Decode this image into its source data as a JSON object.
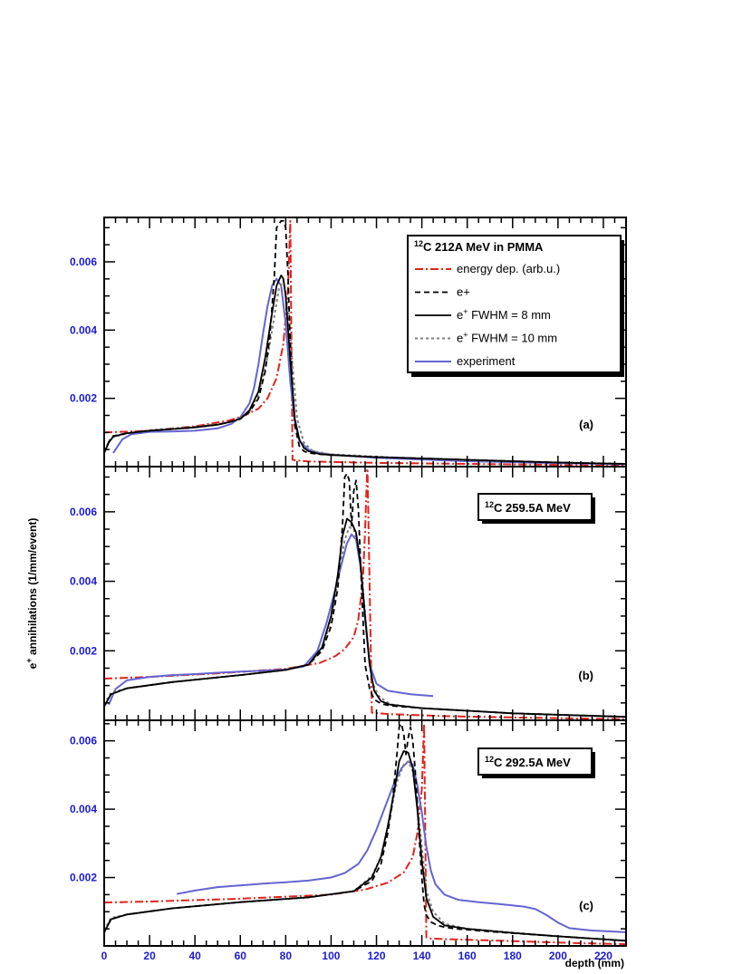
{
  "figure": {
    "ylabel_prefix": "e",
    "ylabel_sup": "+",
    "ylabel_rest": " annihilations (1/mm/event)",
    "xlabel": "depth (mm)",
    "colors": {
      "tick_y": "#1a1ad6",
      "tick_x": "#1a1ad6",
      "energy": "#e3231c",
      "eplus": "#000000",
      "fwhm8": "#000000",
      "fwhm10": "#7f7f7f",
      "experiment": "#6464d2"
    }
  },
  "legend": {
    "title_sup": "12",
    "title": "C 212A MeV in PMMA",
    "entries": [
      {
        "key": "energy",
        "label": "energy dep. (arb.u.)"
      },
      {
        "key": "eplus",
        "label": "e+"
      },
      {
        "key": "fwhm8",
        "label_prefix": "e",
        "label_sup": "+",
        "label_rest": " FWHM = 8 mm"
      },
      {
        "key": "fwhm10",
        "label_prefix": "e",
        "label_sup": "+",
        "label_rest": " FWHM = 10 mm"
      },
      {
        "key": "experiment",
        "label": "experiment"
      }
    ]
  },
  "chart_data": [
    {
      "type": "line",
      "panel_label": "(a)",
      "title": "",
      "xlim": [
        0,
        230
      ],
      "ylim": [
        0,
        0.0073
      ],
      "yticks": [
        "0.002",
        "0.004",
        "0.006"
      ],
      "xticks": [],
      "series": [
        {
          "key": "energy",
          "x": [
            0,
            20,
            40,
            55,
            62,
            68,
            72,
            76,
            79,
            81,
            82,
            83,
            85,
            90,
            120,
            160,
            200,
            230
          ],
          "y": [
            0.001,
            0.00105,
            0.00118,
            0.00135,
            0.0015,
            0.0017,
            0.002,
            0.0026,
            0.0036,
            0.0052,
            0.0072,
            0.0002,
            0.00018,
            0.00015,
            0.00011,
            8e-05,
            5e-05,
            3e-05
          ]
        },
        {
          "key": "eplus",
          "x": [
            0,
            2,
            4,
            10,
            20,
            30,
            40,
            50,
            55,
            60,
            64,
            68,
            71,
            73,
            75,
            76,
            78,
            79,
            80,
            81,
            82,
            84,
            86,
            88,
            90,
            95,
            100,
            120,
            150,
            200,
            230
          ],
          "y": [
            0.0004,
            0.00072,
            0.0009,
            0.00098,
            0.00105,
            0.0011,
            0.00115,
            0.00123,
            0.0013,
            0.0014,
            0.0016,
            0.002,
            0.0028,
            0.0038,
            0.0056,
            0.007,
            0.0072,
            0.0072,
            0.007,
            0.0056,
            0.0035,
            0.0012,
            0.0006,
            0.00045,
            0.0004,
            0.00036,
            0.00034,
            0.00028,
            0.00022,
            0.00012,
            8e-05
          ]
        },
        {
          "key": "fwhm8",
          "x": [
            0,
            2,
            4,
            10,
            20,
            30,
            40,
            50,
            55,
            60,
            64,
            68,
            71,
            74,
            76,
            78,
            79,
            80,
            82,
            84,
            86,
            88,
            90,
            95,
            100,
            120,
            150,
            200,
            230
          ],
          "y": [
            0.0004,
            0.0007,
            0.00088,
            0.00098,
            0.00105,
            0.0011,
            0.00115,
            0.00123,
            0.0013,
            0.0014,
            0.00165,
            0.0022,
            0.0032,
            0.0045,
            0.0053,
            0.0056,
            0.0055,
            0.005,
            0.0031,
            0.0014,
            0.0008,
            0.00055,
            0.00045,
            0.00037,
            0.00034,
            0.00028,
            0.00022,
            0.00012,
            8e-05
          ]
        },
        {
          "key": "fwhm10",
          "x": [
            0,
            3,
            10,
            20,
            30,
            40,
            50,
            58,
            64,
            68,
            72,
            75,
            77,
            79,
            81,
            83,
            85,
            88,
            92,
            100,
            130,
            170,
            230
          ],
          "y": [
            0.00045,
            0.00085,
            0.00097,
            0.00107,
            0.00112,
            0.00117,
            0.00124,
            0.00135,
            0.0016,
            0.0021,
            0.0032,
            0.0044,
            0.0052,
            0.00545,
            0.0047,
            0.003,
            0.0014,
            0.0007,
            0.00045,
            0.00036,
            0.00026,
            0.00017,
            8e-05
          ]
        },
        {
          "key": "experiment",
          "x": [
            4,
            8,
            12,
            20,
            30,
            40,
            50,
            56,
            60,
            64,
            66,
            68,
            70,
            72,
            74,
            76,
            78,
            80,
            82,
            84,
            86,
            90,
            95,
            100,
            120,
            160,
            200,
            230
          ],
          "y": [
            0.0004,
            0.0008,
            0.00095,
            0.00102,
            0.00103,
            0.00105,
            0.00112,
            0.00125,
            0.00145,
            0.00185,
            0.0023,
            0.003,
            0.0039,
            0.0047,
            0.0053,
            0.0055,
            0.0053,
            0.0042,
            0.0025,
            0.0013,
            0.00075,
            0.0005,
            0.0004,
            0.00035,
            0.00026,
            0.00016,
            0.0001,
            7e-05
          ]
        }
      ]
    },
    {
      "type": "line",
      "panel_label": "(b)",
      "title_sup": "12",
      "title": "C 259.5A MeV",
      "xlim": [
        0,
        230
      ],
      "ylim": [
        0,
        0.0073
      ],
      "yticks": [
        "0.002",
        "0.004",
        "0.006"
      ],
      "xticks": [],
      "series": [
        {
          "key": "energy",
          "x": [
            0,
            20,
            50,
            80,
            95,
            102,
            106,
            110,
            112,
            114,
            115,
            116,
            118,
            125,
            150,
            190,
            230
          ],
          "y": [
            0.0012,
            0.00125,
            0.00135,
            0.00148,
            0.00165,
            0.00185,
            0.00205,
            0.0024,
            0.0029,
            0.004,
            0.0055,
            0.0074,
            0.00022,
            0.00018,
            0.00012,
            7e-05,
            3e-05
          ]
        },
        {
          "key": "eplus",
          "x": [
            0,
            3,
            10,
            30,
            60,
            80,
            90,
            96,
            100,
            103,
            105,
            106,
            107,
            108,
            109,
            110,
            111,
            112,
            113,
            114,
            115,
            117,
            119,
            122,
            126,
            140,
            180,
            230
          ],
          "y": [
            0.0004,
            0.00075,
            0.00092,
            0.0011,
            0.0013,
            0.00145,
            0.0016,
            0.002,
            0.0027,
            0.0038,
            0.0056,
            0.007,
            0.0071,
            0.0069,
            0.0056,
            0.0066,
            0.0069,
            0.0061,
            0.0045,
            0.003,
            0.0016,
            0.0009,
            0.0006,
            0.00048,
            0.00042,
            0.00035,
            0.0002,
            0.0001
          ]
        },
        {
          "key": "fwhm8",
          "x": [
            0,
            3,
            10,
            30,
            60,
            80,
            90,
            96,
            100,
            103,
            105,
            107,
            109,
            111,
            113,
            115,
            117,
            119,
            122,
            126,
            140,
            180,
            230
          ],
          "y": [
            0.0004,
            0.00075,
            0.00092,
            0.0011,
            0.0013,
            0.00145,
            0.0016,
            0.0021,
            0.003,
            0.0042,
            0.0053,
            0.0058,
            0.0057,
            0.0054,
            0.0045,
            0.003,
            0.0016,
            0.00085,
            0.00055,
            0.00045,
            0.00035,
            0.0002,
            0.0001
          ]
        },
        {
          "key": "fwhm10",
          "x": [
            0,
            3,
            10,
            30,
            60,
            80,
            90,
            96,
            100,
            103,
            106,
            108,
            110,
            112,
            114,
            116,
            118,
            121,
            126,
            140,
            180,
            230
          ],
          "y": [
            0.00045,
            0.0008,
            0.00092,
            0.0011,
            0.0013,
            0.00145,
            0.0016,
            0.00205,
            0.0029,
            0.004,
            0.0052,
            0.00555,
            0.0055,
            0.005,
            0.0038,
            0.0023,
            0.0011,
            0.0007,
            0.00046,
            0.00035,
            0.0002,
            0.0001
          ]
        },
        {
          "key": "experiment",
          "x": [
            2,
            5,
            10,
            20,
            30,
            40,
            50,
            60,
            70,
            80,
            88,
            94,
            98,
            102,
            105,
            107,
            109,
            111,
            113,
            115,
            117,
            120,
            125,
            135,
            145
          ],
          "y": [
            0.00045,
            0.0009,
            0.00115,
            0.00125,
            0.0013,
            0.00133,
            0.00137,
            0.0014,
            0.00143,
            0.00146,
            0.00155,
            0.002,
            0.0028,
            0.0038,
            0.0046,
            0.0051,
            0.00535,
            0.0052,
            0.0044,
            0.0029,
            0.0016,
            0.00105,
            0.00085,
            0.00075,
            0.0007
          ]
        }
      ]
    },
    {
      "type": "line",
      "panel_label": "(c)",
      "title_sup": "12",
      "title": "C 292.5A MeV",
      "xlim": [
        0,
        230
      ],
      "ylim": [
        0,
        0.0066
      ],
      "yticks": [
        "0.002",
        "0.004",
        "0.006"
      ],
      "xticks": [
        "0",
        "20",
        "40",
        "60",
        "80",
        "100",
        "120",
        "140",
        "160",
        "180",
        "200",
        "220"
      ],
      "series": [
        {
          "key": "energy",
          "x": [
            0,
            20,
            60,
            100,
            115,
            125,
            132,
            136,
            138,
            140,
            141,
            142,
            143,
            150,
            180,
            210,
            230
          ],
          "y": [
            0.00127,
            0.0013,
            0.00138,
            0.0015,
            0.00165,
            0.00185,
            0.00215,
            0.0026,
            0.0033,
            0.0046,
            0.0065,
            0.00025,
            0.00022,
            0.0002,
            0.00014,
            8e-05,
            5e-05
          ]
        },
        {
          "key": "eplus",
          "x": [
            0,
            3,
            10,
            30,
            60,
            90,
            110,
            118,
            122,
            125,
            127,
            129,
            130,
            131,
            132,
            133,
            134,
            135,
            136,
            137,
            138,
            139,
            140,
            141,
            142,
            144,
            147,
            150,
            155,
            170,
            200,
            230
          ],
          "y": [
            0.0004,
            0.00078,
            0.00092,
            0.0011,
            0.00128,
            0.00142,
            0.0016,
            0.0019,
            0.0024,
            0.0033,
            0.0042,
            0.0056,
            0.0064,
            0.0065,
            0.0062,
            0.0056,
            0.0061,
            0.0064,
            0.006,
            0.0052,
            0.0042,
            0.003,
            0.002,
            0.0012,
            0.0009,
            0.0007,
            0.0006,
            0.00055,
            0.0005,
            0.00042,
            0.00028,
            0.00015
          ]
        },
        {
          "key": "fwhm8",
          "x": [
            0,
            3,
            10,
            30,
            60,
            90,
            110,
            118,
            122,
            125,
            128,
            130,
            132,
            134,
            136,
            138,
            140,
            142,
            145,
            150,
            160,
            180,
            200,
            230
          ],
          "y": [
            0.0004,
            0.00078,
            0.00092,
            0.0011,
            0.00128,
            0.00142,
            0.0016,
            0.002,
            0.0026,
            0.0035,
            0.0046,
            0.0054,
            0.0057,
            0.00565,
            0.0052,
            0.004,
            0.0025,
            0.0014,
            0.00085,
            0.0006,
            0.0005,
            0.00038,
            0.00028,
            0.00015
          ]
        },
        {
          "key": "fwhm10",
          "x": [
            0,
            3,
            10,
            30,
            60,
            90,
            110,
            118,
            122,
            126,
            129,
            132,
            134,
            136,
            138,
            140,
            142,
            145,
            150,
            160,
            200,
            230
          ],
          "y": [
            0.00045,
            0.00082,
            0.00092,
            0.0011,
            0.00128,
            0.00142,
            0.0016,
            0.00205,
            0.0026,
            0.0038,
            0.0048,
            0.0053,
            0.0054,
            0.0051,
            0.0042,
            0.0029,
            0.0016,
            0.001,
            0.00065,
            0.0005,
            0.00028,
            0.00015
          ]
        },
        {
          "key": "experiment",
          "x": [
            32,
            40,
            50,
            60,
            70,
            80,
            90,
            100,
            106,
            112,
            116,
            120,
            124,
            128,
            131,
            134,
            136,
            138,
            140,
            142,
            144,
            146,
            150,
            156,
            165,
            175,
            185,
            190,
            195,
            200,
            205,
            215,
            230
          ],
          "y": [
            0.00152,
            0.00162,
            0.00172,
            0.00177,
            0.00182,
            0.00186,
            0.00191,
            0.002,
            0.00213,
            0.0024,
            0.0028,
            0.0034,
            0.0041,
            0.0048,
            0.0052,
            0.0054,
            0.0053,
            0.0047,
            0.0039,
            0.0029,
            0.0022,
            0.0018,
            0.0015,
            0.00135,
            0.00128,
            0.00122,
            0.00115,
            0.00108,
            0.0009,
            0.00068,
            0.00052,
            0.00045,
            0.0004
          ]
        }
      ]
    }
  ]
}
